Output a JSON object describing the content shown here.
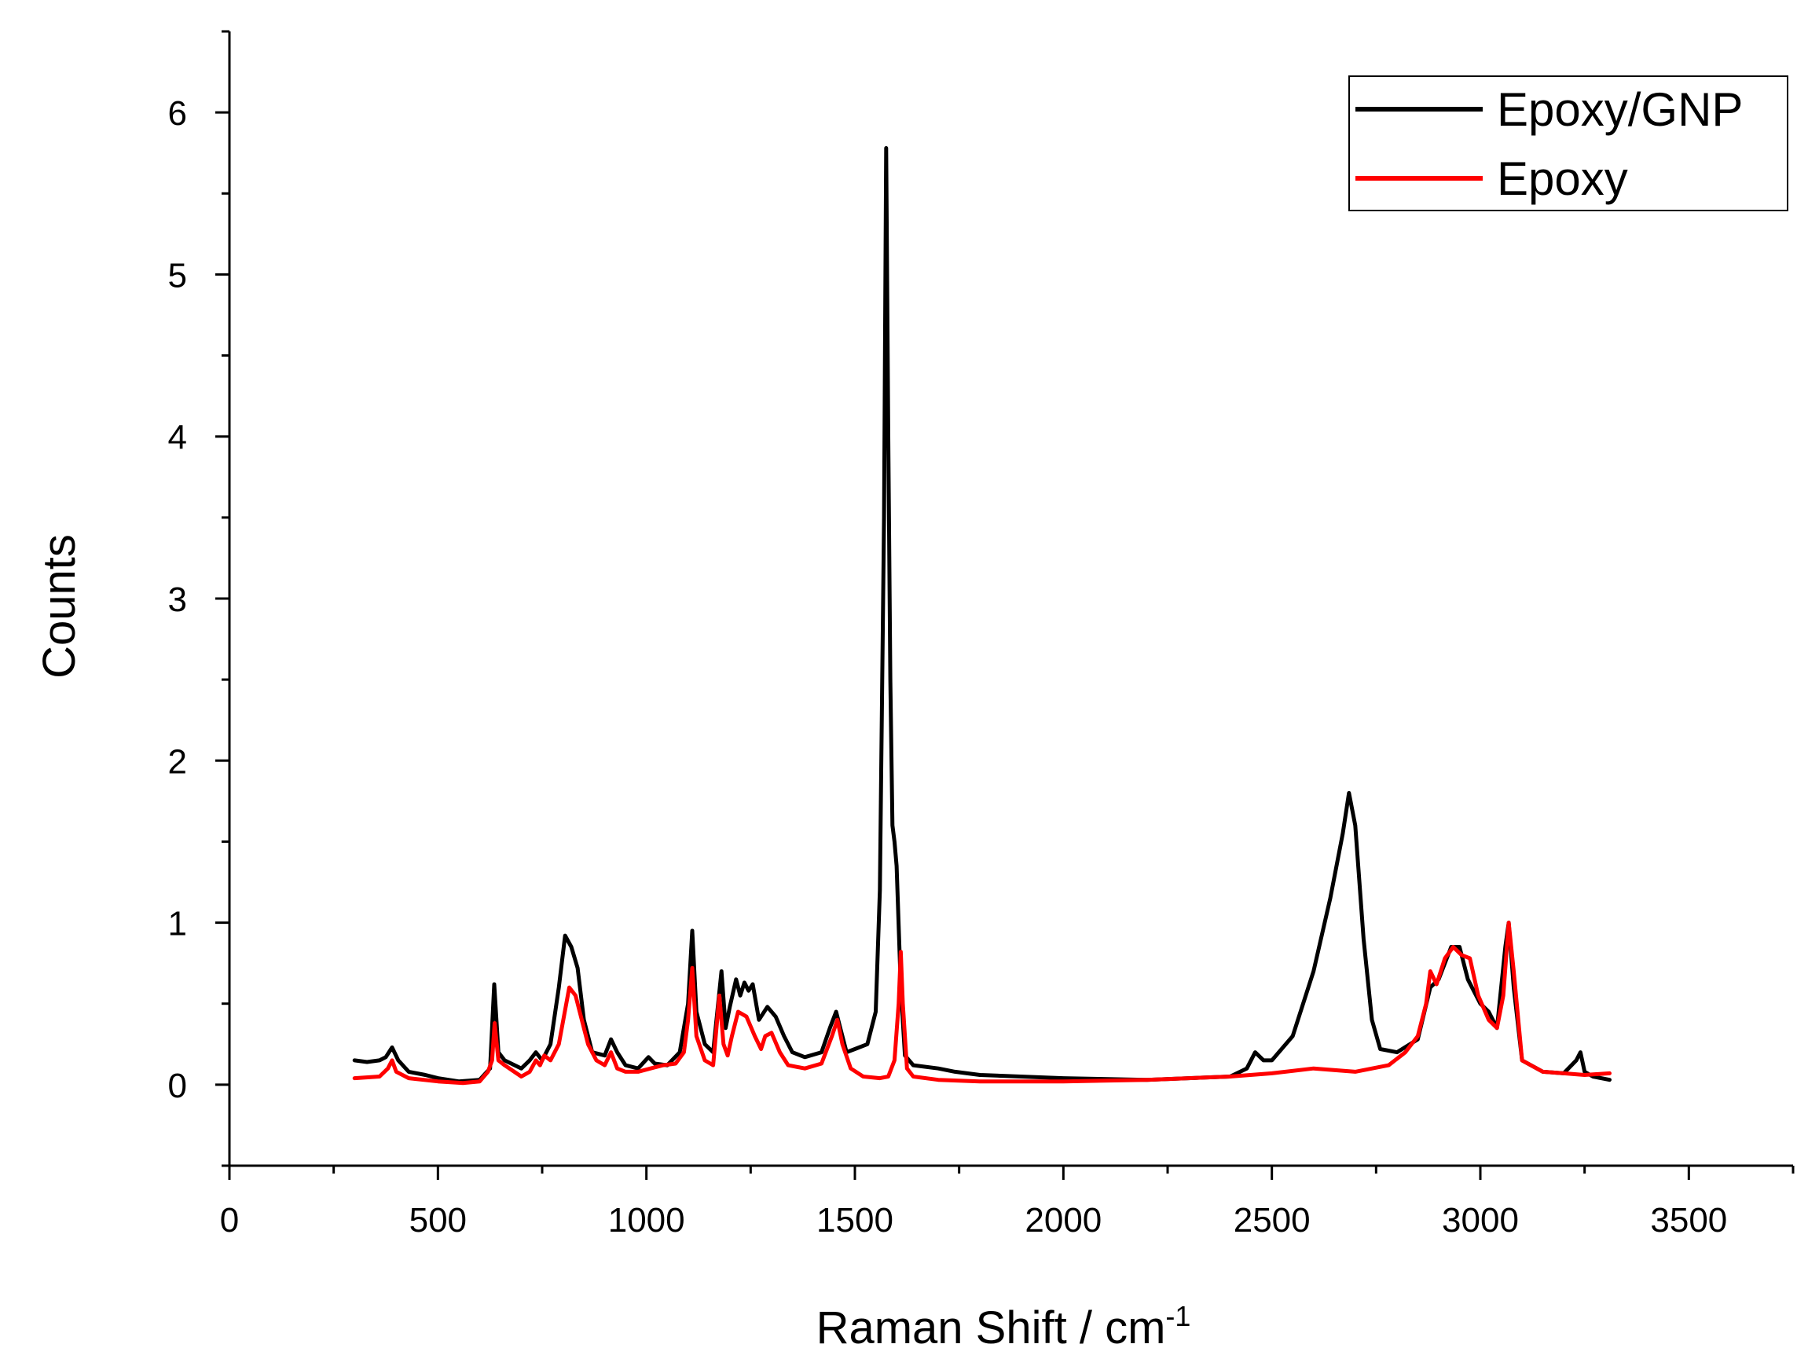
{
  "chart_data": {
    "type": "line",
    "xlabel": "Raman Shift / cm",
    "xlabel_sup": "-1",
    "ylabel": "Counts",
    "xlim": [
      0,
      3750
    ],
    "ylim": [
      -0.5,
      6.5
    ],
    "x_ticks": [
      0,
      500,
      1000,
      1500,
      2000,
      2500,
      3000,
      3500
    ],
    "x_tick_labels": [
      "0",
      "500",
      "1000",
      "1500",
      "2000",
      "2500",
      "3000",
      "3500"
    ],
    "y_ticks": [
      0,
      1,
      2,
      3,
      4,
      5,
      6
    ],
    "y_tick_labels": [
      "0",
      "1",
      "2",
      "3",
      "4",
      "5",
      "6"
    ],
    "grid": false,
    "legend_position": "top-right",
    "series": [
      {
        "name": "Epoxy/GNP",
        "color": "#000000",
        "x": [
          300,
          330,
          360,
          375,
          390,
          405,
          430,
          470,
          500,
          550,
          600,
          625,
          635,
          645,
          660,
          700,
          720,
          735,
          750,
          770,
          790,
          805,
          820,
          835,
          850,
          870,
          900,
          915,
          930,
          950,
          980,
          1005,
          1020,
          1050,
          1080,
          1100,
          1110,
          1120,
          1140,
          1160,
          1180,
          1190,
          1200,
          1215,
          1225,
          1235,
          1245,
          1255,
          1270,
          1290,
          1310,
          1330,
          1350,
          1380,
          1420,
          1440,
          1455,
          1465,
          1480,
          1500,
          1530,
          1550,
          1560,
          1570,
          1575,
          1580,
          1585,
          1590,
          1595,
          1600,
          1610,
          1620,
          1640,
          1700,
          1740,
          1800,
          2000,
          2200,
          2400,
          2440,
          2460,
          2480,
          2500,
          2550,
          2600,
          2640,
          2670,
          2685,
          2700,
          2720,
          2740,
          2760,
          2800,
          2850,
          2880,
          2900,
          2930,
          2950,
          2970,
          3000,
          3020,
          3040,
          3060,
          3068,
          3080,
          3100,
          3150,
          3200,
          3230,
          3240,
          3250,
          3270,
          3310
        ],
        "y": [
          0.15,
          0.14,
          0.15,
          0.17,
          0.23,
          0.15,
          0.08,
          0.06,
          0.04,
          0.02,
          0.03,
          0.1,
          0.62,
          0.2,
          0.15,
          0.1,
          0.15,
          0.2,
          0.15,
          0.25,
          0.6,
          0.92,
          0.85,
          0.72,
          0.4,
          0.2,
          0.18,
          0.28,
          0.2,
          0.12,
          0.1,
          0.17,
          0.13,
          0.12,
          0.2,
          0.5,
          0.95,
          0.45,
          0.25,
          0.2,
          0.7,
          0.35,
          0.48,
          0.65,
          0.55,
          0.63,
          0.58,
          0.62,
          0.4,
          0.48,
          0.42,
          0.3,
          0.2,
          0.17,
          0.2,
          0.35,
          0.45,
          0.35,
          0.2,
          0.22,
          0.25,
          0.45,
          1.2,
          3.5,
          5.78,
          4.0,
          2.5,
          1.6,
          1.5,
          1.35,
          0.6,
          0.18,
          0.12,
          0.1,
          0.08,
          0.06,
          0.04,
          0.03,
          0.05,
          0.1,
          0.2,
          0.15,
          0.15,
          0.3,
          0.7,
          1.15,
          1.55,
          1.8,
          1.6,
          0.9,
          0.4,
          0.22,
          0.2,
          0.28,
          0.6,
          0.65,
          0.85,
          0.85,
          0.65,
          0.5,
          0.45,
          0.35,
          0.85,
          1.0,
          0.6,
          0.15,
          0.08,
          0.07,
          0.15,
          0.2,
          0.08,
          0.05,
          0.03
        ]
      },
      {
        "name": "Epoxy",
        "color": "#ff0000",
        "x": [
          300,
          360,
          380,
          390,
          400,
          430,
          500,
          560,
          600,
          620,
          630,
          636,
          645,
          660,
          700,
          720,
          735,
          745,
          755,
          770,
          790,
          815,
          830,
          845,
          860,
          880,
          900,
          915,
          930,
          950,
          980,
          1010,
          1040,
          1070,
          1090,
          1100,
          1110,
          1120,
          1140,
          1160,
          1175,
          1185,
          1195,
          1205,
          1220,
          1240,
          1260,
          1275,
          1285,
          1300,
          1320,
          1340,
          1380,
          1420,
          1445,
          1458,
          1470,
          1490,
          1520,
          1560,
          1580,
          1595,
          1605,
          1610,
          1615,
          1625,
          1640,
          1700,
          1800,
          2000,
          2200,
          2400,
          2500,
          2600,
          2700,
          2780,
          2820,
          2850,
          2870,
          2880,
          2895,
          2915,
          2935,
          2955,
          2975,
          2995,
          3020,
          3040,
          3055,
          3068,
          3080,
          3100,
          3150,
          3200,
          3250,
          3310
        ],
        "y": [
          0.04,
          0.05,
          0.1,
          0.15,
          0.08,
          0.04,
          0.02,
          0.01,
          0.02,
          0.08,
          0.15,
          0.38,
          0.15,
          0.12,
          0.05,
          0.08,
          0.15,
          0.12,
          0.18,
          0.15,
          0.25,
          0.6,
          0.55,
          0.4,
          0.25,
          0.15,
          0.12,
          0.2,
          0.1,
          0.08,
          0.08,
          0.1,
          0.12,
          0.13,
          0.2,
          0.4,
          0.72,
          0.3,
          0.15,
          0.12,
          0.55,
          0.25,
          0.18,
          0.3,
          0.45,
          0.42,
          0.3,
          0.22,
          0.3,
          0.32,
          0.2,
          0.12,
          0.1,
          0.13,
          0.3,
          0.4,
          0.25,
          0.1,
          0.05,
          0.04,
          0.05,
          0.15,
          0.5,
          0.82,
          0.5,
          0.1,
          0.05,
          0.03,
          0.02,
          0.02,
          0.03,
          0.05,
          0.07,
          0.1,
          0.08,
          0.12,
          0.2,
          0.3,
          0.5,
          0.7,
          0.62,
          0.78,
          0.85,
          0.8,
          0.78,
          0.55,
          0.4,
          0.35,
          0.55,
          1.0,
          0.7,
          0.15,
          0.08,
          0.07,
          0.06,
          0.07
        ]
      }
    ]
  }
}
